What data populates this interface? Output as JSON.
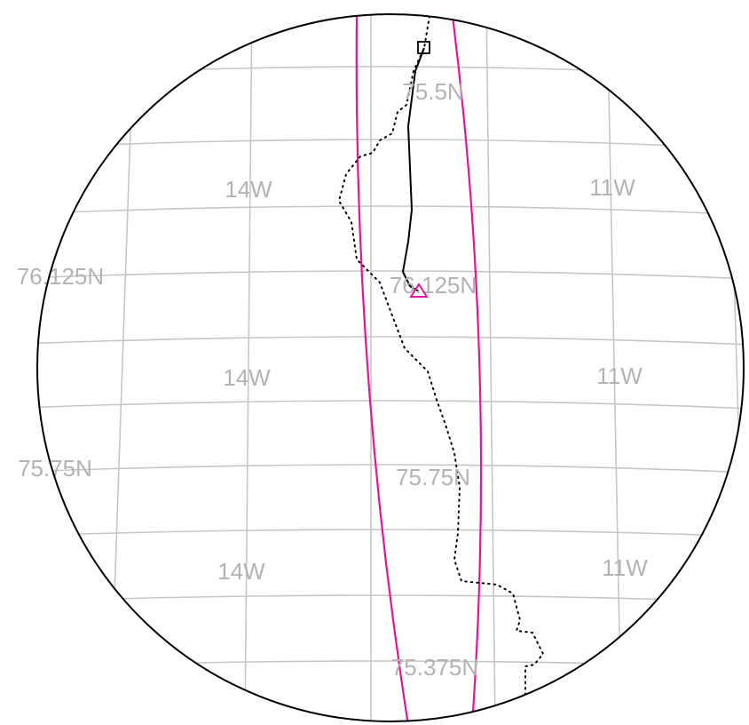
{
  "map": {
    "latitude_labels": [
      "75.5N",
      "76.125N",
      "76.125N",
      "75.75N",
      "75.75N",
      "75.375N"
    ],
    "longitude_labels": [
      "14W",
      "11W",
      "14W",
      "11W",
      "14W",
      "11W"
    ],
    "markers": {
      "start": {
        "shape": "square",
        "color": "#000000"
      },
      "end": {
        "shape": "triangle",
        "color": "#e0179b"
      }
    },
    "colors": {
      "graticule": "#c7c7c7",
      "boundary_lines": "#e0179b",
      "track_solid": "#000000",
      "track_dotted": "#000000",
      "labels": "#b3b3b3",
      "frame": "#000000"
    }
  }
}
